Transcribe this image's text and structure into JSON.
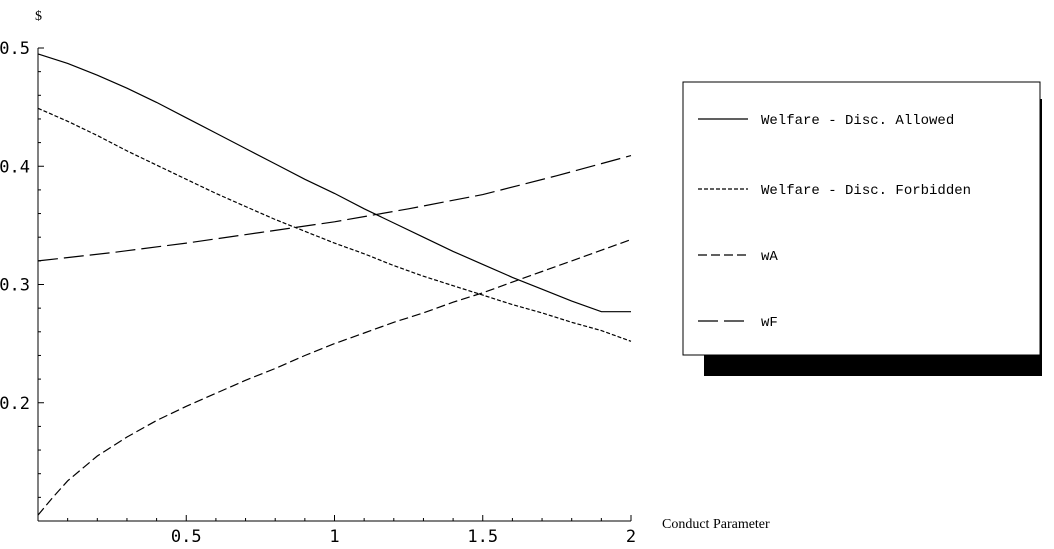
{
  "chart_data": {
    "type": "line",
    "title": "",
    "xlabel": "Conduct Parameter",
    "ylabel": "$",
    "xlim": [
      0,
      2
    ],
    "ylim": [
      0.1,
      0.5
    ],
    "x_ticks": [
      0.5,
      1,
      1.5,
      2
    ],
    "x_tick_labels": [
      "0.5",
      "1",
      "1.5",
      "2"
    ],
    "y_ticks": [
      0.2,
      0.3,
      0.4,
      0.5
    ],
    "y_tick_labels": [
      "0.2",
      "0.3",
      "0.4",
      "0.5"
    ],
    "grid": false,
    "legend_position": "right",
    "series": [
      {
        "name": "Welfare - Disc. Allowed",
        "style": "solid",
        "x": [
          0,
          0.1,
          0.2,
          0.3,
          0.4,
          0.5,
          0.6,
          0.7,
          0.8,
          0.9,
          1.0,
          1.1,
          1.2,
          1.3,
          1.4,
          1.5,
          1.6,
          1.7,
          1.8,
          1.9,
          2.0
        ],
        "y": [
          0.495,
          0.487,
          0.477,
          0.466,
          0.454,
          0.441,
          0.428,
          0.415,
          0.402,
          0.389,
          0.377,
          0.364,
          0.352,
          0.34,
          0.328,
          0.317,
          0.306,
          0.296,
          0.286,
          0.277,
          0.277
        ]
      },
      {
        "name": "Welfare - Disc. Forbidden",
        "style": "dotted",
        "x": [
          0,
          0.1,
          0.2,
          0.3,
          0.4,
          0.5,
          0.6,
          0.7,
          0.8,
          0.9,
          1.0,
          1.1,
          1.2,
          1.3,
          1.4,
          1.5,
          1.6,
          1.7,
          1.8,
          1.9,
          2.0
        ],
        "y": [
          0.449,
          0.438,
          0.426,
          0.413,
          0.401,
          0.389,
          0.377,
          0.366,
          0.355,
          0.345,
          0.335,
          0.326,
          0.316,
          0.307,
          0.299,
          0.291,
          0.283,
          0.276,
          0.268,
          0.261,
          0.252
        ]
      },
      {
        "name": "wA",
        "style": "dashed",
        "x": [
          0,
          0.05,
          0.1,
          0.2,
          0.3,
          0.4,
          0.5,
          0.6,
          0.7,
          0.8,
          0.9,
          1.0,
          1.1,
          1.2,
          1.3,
          1.4,
          1.5,
          1.6,
          1.7,
          1.8,
          1.9,
          2.0
        ],
        "y": [
          0.105,
          0.12,
          0.134,
          0.155,
          0.171,
          0.185,
          0.197,
          0.208,
          0.219,
          0.229,
          0.24,
          0.25,
          0.259,
          0.268,
          0.276,
          0.285,
          0.293,
          0.302,
          0.311,
          0.32,
          0.329,
          0.338
        ]
      },
      {
        "name": "wF",
        "style": "long-dashed",
        "x": [
          0,
          0.25,
          0.5,
          0.75,
          1.0,
          1.25,
          1.5,
          1.75,
          2.0
        ],
        "y": [
          0.32,
          0.327,
          0.335,
          0.344,
          0.353,
          0.364,
          0.376,
          0.392,
          0.409
        ]
      }
    ]
  }
}
